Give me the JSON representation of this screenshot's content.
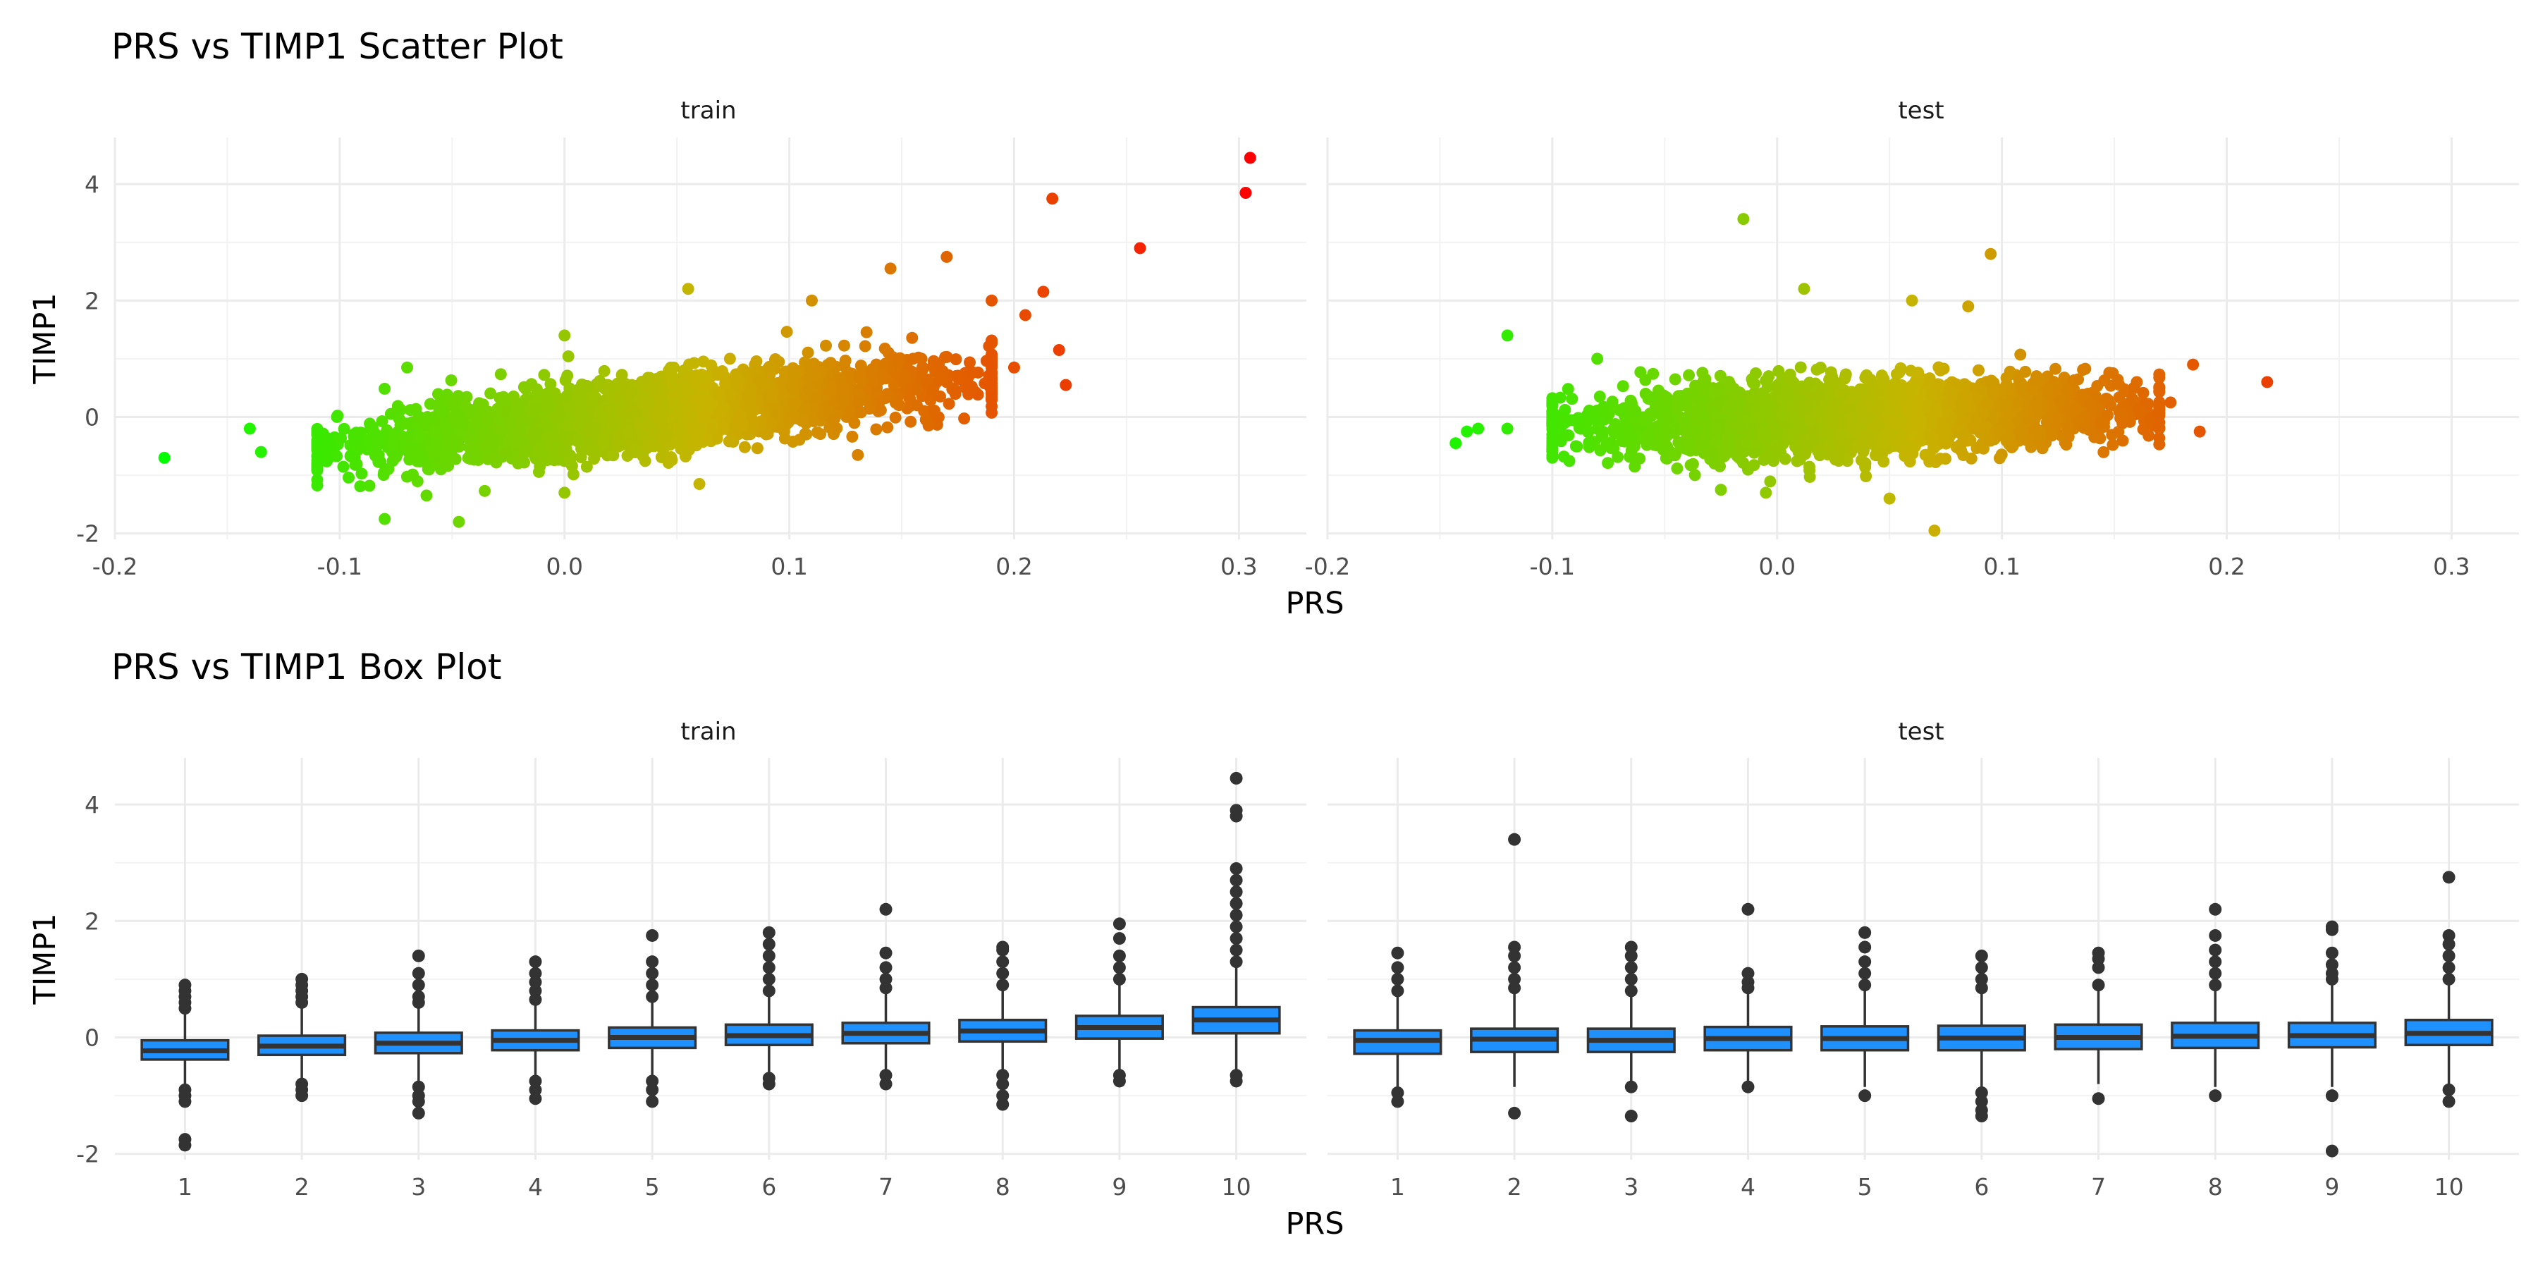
{
  "figure": {
    "scatter_title": "PRS vs TIMP1 Scatter Plot",
    "box_title": "PRS vs TIMP1 Box Plot",
    "panel_labels": [
      "train",
      "test"
    ],
    "x_label": "PRS",
    "y_label": "TIMP1"
  },
  "chart_data": [
    {
      "type": "scatter",
      "title": "PRS vs TIMP1 Scatter Plot",
      "xlabel": "PRS",
      "ylabel": "TIMP1",
      "xlim": [
        -0.2,
        0.33
      ],
      "ylim": [
        -2.1,
        4.8
      ],
      "xticks": [
        -0.2,
        -0.1,
        0.0,
        0.1,
        0.2,
        0.3
      ],
      "xtick_labels": [
        "-0.2",
        "-0.1",
        "0.0",
        "0.1",
        "0.2",
        "0.3"
      ],
      "yticks": [
        -2,
        0,
        2,
        4
      ],
      "ytick_labels": [
        "-2",
        "0",
        "2",
        "4"
      ],
      "color_gradient": [
        "#00ff00",
        "#c8b400",
        "#ff0000"
      ],
      "color_mapping": "points colored by PRS (green low to red high)",
      "panels": [
        {
          "name": "train",
          "bulk": {
            "x_range": [
              -0.11,
              0.19
            ],
            "slope": 4.2,
            "intercept": -0.1,
            "spread": 0.3
          },
          "points": [
            {
              "x": -0.178,
              "y": -0.7
            },
            {
              "x": -0.14,
              "y": -0.2
            },
            {
              "x": -0.135,
              "y": -0.6
            },
            {
              "x": -0.08,
              "y": -1.75
            },
            {
              "x": -0.047,
              "y": -1.8
            },
            {
              "x": -0.07,
              "y": 0.85
            },
            {
              "x": 0.0,
              "y": 1.4
            },
            {
              "x": 0.055,
              "y": 2.2
            },
            {
              "x": -0.0,
              "y": -1.3
            },
            {
              "x": 0.06,
              "y": -1.15
            },
            {
              "x": 0.11,
              "y": 2.0
            },
            {
              "x": 0.145,
              "y": 2.55
            },
            {
              "x": 0.17,
              "y": 2.75
            },
            {
              "x": 0.205,
              "y": 1.75
            },
            {
              "x": 0.19,
              "y": 2.0
            },
            {
              "x": 0.2,
              "y": 0.85
            },
            {
              "x": 0.213,
              "y": 2.15
            },
            {
              "x": 0.217,
              "y": 3.75
            },
            {
              "x": 0.22,
              "y": 1.15
            },
            {
              "x": 0.223,
              "y": 0.55
            },
            {
              "x": 0.256,
              "y": 2.9
            },
            {
              "x": 0.303,
              "y": 3.85
            },
            {
              "x": 0.305,
              "y": 4.45
            }
          ]
        },
        {
          "name": "test",
          "bulk": {
            "x_range": [
              -0.1,
              0.17
            ],
            "slope": 1.2,
            "intercept": -0.05,
            "spread": 0.3
          },
          "points": [
            {
              "x": -0.143,
              "y": -0.45
            },
            {
              "x": -0.138,
              "y": -0.25
            },
            {
              "x": -0.133,
              "y": -0.2
            },
            {
              "x": -0.12,
              "y": 1.4
            },
            {
              "x": -0.12,
              "y": -0.2
            },
            {
              "x": -0.08,
              "y": 1.0
            },
            {
              "x": -0.015,
              "y": 3.4
            },
            {
              "x": 0.012,
              "y": 2.2
            },
            {
              "x": 0.095,
              "y": 2.8
            },
            {
              "x": 0.06,
              "y": 2.0
            },
            {
              "x": 0.085,
              "y": 1.9
            },
            {
              "x": 0.07,
              "y": -1.95
            },
            {
              "x": 0.05,
              "y": -1.4
            },
            {
              "x": -0.005,
              "y": -1.3
            },
            {
              "x": -0.025,
              "y": -1.25
            },
            {
              "x": 0.185,
              "y": 0.9
            },
            {
              "x": 0.188,
              "y": -0.25
            },
            {
              "x": 0.175,
              "y": 0.25
            },
            {
              "x": 0.218,
              "y": 0.6
            },
            {
              "x": 0.16,
              "y": 0.6
            }
          ]
        }
      ]
    },
    {
      "type": "box",
      "title": "PRS vs TIMP1 Box Plot",
      "xlabel": "PRS",
      "ylabel": "TIMP1",
      "ylim": [
        -2.1,
        4.8
      ],
      "yticks": [
        -2,
        0,
        2,
        4
      ],
      "ytick_labels": [
        "-2",
        "0",
        "2",
        "4"
      ],
      "categories": [
        "1",
        "2",
        "3",
        "4",
        "5",
        "6",
        "7",
        "8",
        "9",
        "10"
      ],
      "box_color": "#1e90ff",
      "panels": [
        {
          "name": "train",
          "boxes": [
            {
              "q1": -0.38,
              "median": -0.23,
              "q3": -0.05,
              "whisker_low": -0.85,
              "whisker_high": 0.4,
              "outliers": [
                -0.9,
                -1.0,
                -1.1,
                -1.75,
                -1.85,
                0.5,
                0.6,
                0.7,
                0.8,
                0.9
              ]
            },
            {
              "q1": -0.3,
              "median": -0.15,
              "q3": 0.03,
              "whisker_low": -0.75,
              "whisker_high": 0.5,
              "outliers": [
                -0.8,
                -0.9,
                -1.0,
                0.6,
                0.7,
                0.8,
                0.9,
                1.0
              ]
            },
            {
              "q1": -0.27,
              "median": -0.1,
              "q3": 0.08,
              "whisker_low": -0.8,
              "whisker_high": 0.55,
              "outliers": [
                -0.85,
                -1.0,
                -1.1,
                -1.3,
                0.6,
                0.7,
                0.9,
                1.1,
                1.4
              ]
            },
            {
              "q1": -0.22,
              "median": -0.05,
              "q3": 0.12,
              "whisker_low": -0.7,
              "whisker_high": 0.6,
              "outliers": [
                -0.75,
                -0.9,
                -1.05,
                0.65,
                0.8,
                0.95,
                1.1,
                1.3
              ]
            },
            {
              "q1": -0.18,
              "median": 0.0,
              "q3": 0.17,
              "whisker_low": -0.7,
              "whisker_high": 0.65,
              "outliers": [
                -0.75,
                -0.9,
                -1.1,
                0.7,
                0.9,
                1.1,
                1.3,
                1.75
              ]
            },
            {
              "q1": -0.13,
              "median": 0.03,
              "q3": 0.22,
              "whisker_low": -0.65,
              "whisker_high": 0.75,
              "outliers": [
                -0.7,
                -0.8,
                0.8,
                1.0,
                1.2,
                1.4,
                1.6,
                1.8
              ]
            },
            {
              "q1": -0.1,
              "median": 0.07,
              "q3": 0.25,
              "whisker_low": -0.6,
              "whisker_high": 0.78,
              "outliers": [
                -0.65,
                -0.8,
                0.85,
                1.0,
                1.2,
                1.45,
                2.2
              ]
            },
            {
              "q1": -0.07,
              "median": 0.11,
              "q3": 0.3,
              "whisker_low": -0.6,
              "whisker_high": 0.85,
              "outliers": [
                -0.65,
                -0.8,
                -1.0,
                -1.15,
                0.9,
                1.1,
                1.3,
                1.5,
                1.55
              ]
            },
            {
              "q1": -0.02,
              "median": 0.17,
              "q3": 0.37,
              "whisker_low": -0.55,
              "whisker_high": 0.92,
              "outliers": [
                -0.65,
                -0.75,
                1.0,
                1.2,
                1.4,
                1.7,
                1.95
              ]
            },
            {
              "q1": 0.07,
              "median": 0.3,
              "q3": 0.52,
              "whisker_low": -0.6,
              "whisker_high": 1.2,
              "outliers": [
                -0.65,
                -0.75,
                1.3,
                1.5,
                1.7,
                1.9,
                2.1,
                2.3,
                2.5,
                2.7,
                2.9,
                3.8,
                3.9,
                4.45
              ]
            }
          ]
        },
        {
          "name": "test",
          "boxes": [
            {
              "q1": -0.28,
              "median": -0.05,
              "q3": 0.12,
              "whisker_low": -0.85,
              "whisker_high": 0.7,
              "outliers": [
                -0.95,
                -1.1,
                0.8,
                1.0,
                1.2,
                1.45
              ]
            },
            {
              "q1": -0.25,
              "median": -0.03,
              "q3": 0.15,
              "whisker_low": -0.85,
              "whisker_high": 0.75,
              "outliers": [
                -1.3,
                0.85,
                1.0,
                1.2,
                1.4,
                1.55,
                3.4
              ]
            },
            {
              "q1": -0.25,
              "median": -0.05,
              "q3": 0.15,
              "whisker_low": -0.8,
              "whisker_high": 0.75,
              "outliers": [
                -0.85,
                -1.35,
                0.8,
                1.0,
                1.2,
                1.4,
                1.55
              ]
            },
            {
              "q1": -0.22,
              "median": -0.02,
              "q3": 0.18,
              "whisker_low": -0.8,
              "whisker_high": 0.8,
              "outliers": [
                -0.85,
                0.85,
                0.95,
                1.1,
                2.2
              ]
            },
            {
              "q1": -0.22,
              "median": -0.02,
              "q3": 0.19,
              "whisker_low": -0.85,
              "whisker_high": 0.8,
              "outliers": [
                -1.0,
                0.9,
                1.1,
                1.3,
                1.55,
                1.8
              ]
            },
            {
              "q1": -0.22,
              "median": -0.01,
              "q3": 0.2,
              "whisker_low": -0.85,
              "whisker_high": 0.8,
              "outliers": [
                -0.95,
                -1.1,
                -1.25,
                -1.35,
                0.85,
                1.0,
                1.2,
                1.4
              ]
            },
            {
              "q1": -0.2,
              "median": 0.0,
              "q3": 0.22,
              "whisker_low": -0.8,
              "whisker_high": 0.85,
              "outliers": [
                -1.05,
                0.9,
                1.2,
                1.35,
                1.45
              ]
            },
            {
              "q1": -0.18,
              "median": 0.02,
              "q3": 0.25,
              "whisker_low": -0.85,
              "whisker_high": 0.85,
              "outliers": [
                -1.0,
                0.9,
                1.1,
                1.3,
                1.5,
                1.75,
                2.2
              ]
            },
            {
              "q1": -0.17,
              "median": 0.03,
              "q3": 0.25,
              "whisker_low": -0.85,
              "whisker_high": 0.9,
              "outliers": [
                -1.0,
                -1.95,
                1.0,
                1.1,
                1.25,
                1.45,
                1.85,
                1.9
              ]
            },
            {
              "q1": -0.13,
              "median": 0.07,
              "q3": 0.3,
              "whisker_low": -0.85,
              "whisker_high": 0.9,
              "outliers": [
                -0.9,
                -1.1,
                1.0,
                1.2,
                1.4,
                1.6,
                1.75,
                2.75
              ]
            }
          ]
        }
      ]
    }
  ]
}
